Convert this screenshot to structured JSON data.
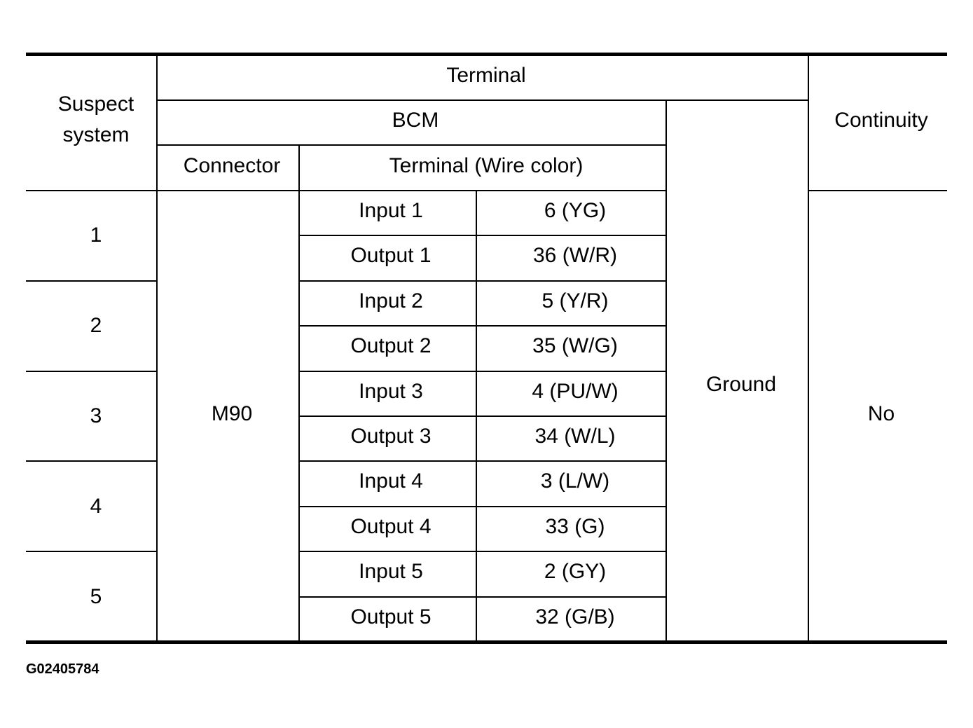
{
  "headers": {
    "suspect_system": "Suspect system",
    "terminal": "Terminal",
    "bcm": "BCM",
    "connector": "Connector",
    "terminal_wire_color": "Terminal (Wire color)",
    "continuity": "Continuity"
  },
  "connector_value": "M90",
  "ground_label": "Ground",
  "continuity_value": "No",
  "systems": [
    {
      "id": "1",
      "terminals": [
        {
          "label": "Input 1",
          "value": "6 (YG)"
        },
        {
          "label": "Output 1",
          "value": "36 (W/R)"
        }
      ]
    },
    {
      "id": "2",
      "terminals": [
        {
          "label": "Input 2",
          "value": "5 (Y/R)"
        },
        {
          "label": "Output 2",
          "value": "35 (W/G)"
        }
      ]
    },
    {
      "id": "3",
      "terminals": [
        {
          "label": "Input 3",
          "value": "4 (PU/W)"
        },
        {
          "label": "Output 3",
          "value": "34 (W/L)"
        }
      ]
    },
    {
      "id": "4",
      "terminals": [
        {
          "label": "Input 4",
          "value": "3 (L/W)"
        },
        {
          "label": "Output 4",
          "value": "33 (G)"
        }
      ]
    },
    {
      "id": "5",
      "terminals": [
        {
          "label": "Input 5",
          "value": "2 (GY)"
        },
        {
          "label": "Output 5",
          "value": "32 (G/B)"
        }
      ]
    }
  ],
  "figure_id": "G02405784"
}
